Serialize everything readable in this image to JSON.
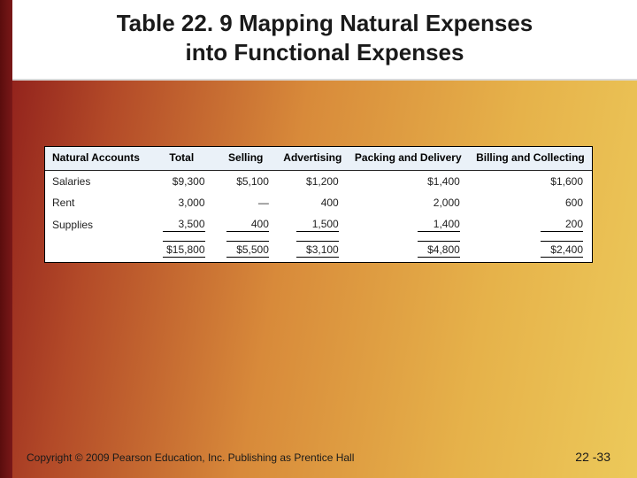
{
  "title_line1": "Table 22. 9 Mapping Natural Expenses",
  "title_line2": "into Functional Expenses",
  "table": {
    "columns": [
      "Natural Accounts",
      "Total",
      "Selling",
      "Advertising",
      "Packing and Delivery",
      "Billing and Collecting"
    ],
    "rows": [
      {
        "label": "Salaries",
        "cells": [
          "$9,300",
          "$5,100",
          "$1,200",
          "$1,400",
          "$1,600"
        ]
      },
      {
        "label": "Rent",
        "cells": [
          "3,000",
          "—",
          "400",
          "2,000",
          "600"
        ]
      },
      {
        "label": "Supplies",
        "cells": [
          "3,500",
          "400",
          "1,500",
          "1,400",
          "200"
        ]
      }
    ],
    "totals": {
      "label": "",
      "cells": [
        "$15,800",
        "$5,500",
        "$3,100",
        "$4,800",
        "$2,400"
      ]
    },
    "header_bg": "#eaf1f8",
    "border_color": "#000000",
    "text_color": "#222222",
    "fontsize": 12
  },
  "footer": {
    "copyright": "Copyright © 2009 Pearson Education, Inc.  Publishing as Prentice Hall",
    "page": "22 -33"
  },
  "colors": {
    "slide_gradient_from": "#8b1a1a",
    "slide_gradient_to": "#ecc95a",
    "leftbar": "#5a0d0d",
    "title_plate_bg": "#ffffff",
    "title_text": "#1a1a1a"
  }
}
